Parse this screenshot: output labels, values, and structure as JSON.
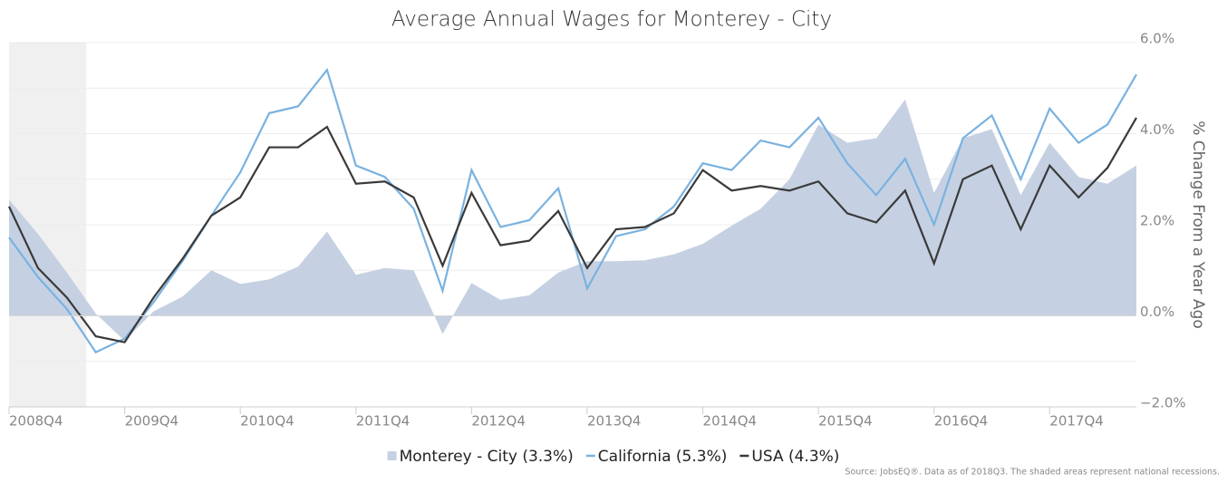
{
  "chart_data": {
    "type": "line",
    "title": "Average Annual Wages for Monterey - City",
    "y_axis_label": "% Change From a Year Ago",
    "source": "Source: JobsEQ®. Data as of 2018Q3. The shaded areas represent national recessions.",
    "categories": [
      "2008Q4",
      null,
      null,
      null,
      "2009Q4",
      null,
      null,
      null,
      "2010Q4",
      null,
      null,
      null,
      "2011Q4",
      null,
      null,
      null,
      "2012Q4",
      null,
      null,
      null,
      "2013Q4",
      null,
      null,
      null,
      "2014Q4",
      null,
      null,
      null,
      "2015Q4",
      null,
      null,
      null,
      "2016Q4",
      null,
      null,
      null,
      "2017Q4",
      null,
      null,
      null
    ],
    "series": [
      {
        "name": "Monterey - City (3.3%)",
        "style": "area",
        "color": "#c5d1e2",
        "values": [
          2.55,
          1.8,
          0.95,
          0.05,
          -0.55,
          0.1,
          0.42,
          1.0,
          0.7,
          0.8,
          1.08,
          1.85,
          0.9,
          1.05,
          1.0,
          -0.4,
          0.72,
          0.35,
          0.45,
          0.95,
          1.2,
          1.2,
          1.22,
          1.35,
          1.58,
          1.98,
          2.35,
          3.0,
          4.2,
          3.8,
          3.9,
          4.75,
          2.7,
          3.9,
          4.1,
          2.65,
          3.8,
          3.05,
          2.9,
          3.3
        ]
      },
      {
        "name": "California (5.3%)",
        "style": "line",
        "color": "#7ab2e0",
        "values": [
          1.72,
          0.85,
          0.15,
          -0.8,
          -0.5,
          0.3,
          1.2,
          2.2,
          3.15,
          4.45,
          4.6,
          5.4,
          3.3,
          3.05,
          2.35,
          0.55,
          3.2,
          1.95,
          2.1,
          2.8,
          0.6,
          1.75,
          1.9,
          2.4,
          3.35,
          3.2,
          3.85,
          3.7,
          4.35,
          3.35,
          2.65,
          3.45,
          2.0,
          3.9,
          4.4,
          3.0,
          4.55,
          3.8,
          4.2,
          5.3
        ]
      },
      {
        "name": "USA (4.3%)",
        "style": "line",
        "color": "#3a3a3a",
        "values": [
          2.4,
          1.05,
          0.4,
          -0.45,
          -0.58,
          0.4,
          1.25,
          2.2,
          2.6,
          3.7,
          3.7,
          4.15,
          2.9,
          2.95,
          2.6,
          1.1,
          2.7,
          1.55,
          1.65,
          2.3,
          1.05,
          1.9,
          1.95,
          2.25,
          3.2,
          2.75,
          2.85,
          2.75,
          2.95,
          2.25,
          2.05,
          2.75,
          1.15,
          3.0,
          3.3,
          1.9,
          3.3,
          2.6,
          3.25,
          4.35
        ]
      }
    ],
    "recession": {
      "start": "2008Q4",
      "end": "2009Q2"
    },
    "ylim": [
      -2,
      6
    ],
    "yticks": [
      {
        "value": -2,
        "label": "−2.0%"
      },
      {
        "value": 0,
        "label": "0.0%"
      },
      {
        "value": 2,
        "label": "2.0%"
      },
      {
        "value": 4,
        "label": "4.0%"
      },
      {
        "value": 6,
        "label": "6.0%"
      }
    ],
    "yminorticks": [
      -1,
      1,
      3,
      5
    ],
    "grid": true,
    "legend": "bottom"
  }
}
